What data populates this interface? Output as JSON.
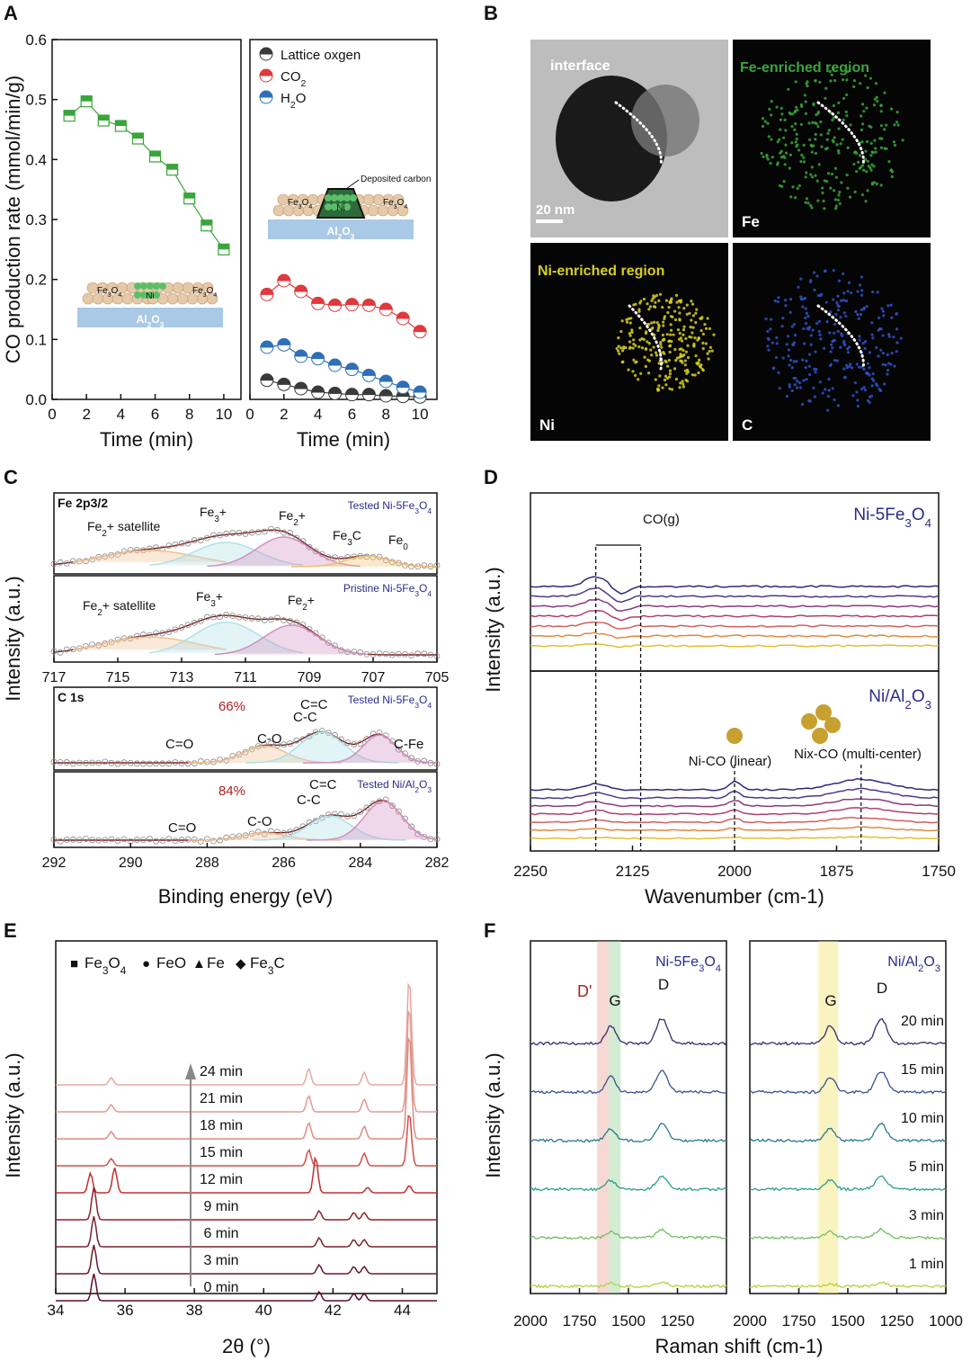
{
  "panels": {
    "A": "A",
    "B": "B",
    "C": "C",
    "D": "D",
    "E": "E",
    "F": "F"
  },
  "colors": {
    "green": "#3aa53a",
    "red": "#e0383c",
    "blue": "#2f6fb8",
    "black": "#3a3a3a",
    "navy": "#2b2b8a",
    "darkred": "#b02020",
    "al2o3": "#a9c9e6",
    "bead": "#e6c9a8"
  },
  "chart_data": [
    {
      "panel": "A-left",
      "type": "line",
      "ylabel": "CO production rate (mmol/min/g)",
      "xlabel": "Time (min)",
      "xlim": [
        0,
        11
      ],
      "ylim": [
        0,
        0.6
      ],
      "xticks": [
        0,
        2,
        4,
        6,
        8,
        10
      ],
      "yticks": [
        0.0,
        0.1,
        0.2,
        0.3,
        0.4,
        0.5,
        0.6
      ],
      "yticklabels": [
        "0.0",
        "0.1",
        "0.2",
        "0.3",
        "0.4",
        "0.5",
        "0.6"
      ],
      "series": [
        {
          "color": "#3aa53a",
          "x": [
            1,
            2,
            3,
            4,
            5,
            6,
            7,
            8,
            9,
            10
          ],
          "values": [
            0.473,
            0.497,
            0.465,
            0.456,
            0.435,
            0.405,
            0.383,
            0.335,
            0.29,
            0.25
          ]
        }
      ],
      "inset": {
        "left": "Fe3O4",
        "center": "Ni",
        "right": "Fe3O4",
        "support": "Al2O3"
      }
    },
    {
      "panel": "A-right",
      "type": "line",
      "xlabel": "Time (min)",
      "xlim": [
        0,
        11
      ],
      "ylim": [
        0,
        0.6
      ],
      "xticks": [
        0,
        2,
        4,
        6,
        8,
        10
      ],
      "legend": [
        "Lattice oxgen",
        "CO2",
        "H2O"
      ],
      "series": [
        {
          "name": "Lattice oxgen",
          "color": "#3a3a3a",
          "x": [
            1,
            2,
            3,
            4,
            5,
            6,
            7,
            8,
            9,
            10
          ],
          "values": [
            0.032,
            0.025,
            0.018,
            0.012,
            0.01,
            0.008,
            0.008,
            0.006,
            0.005,
            0.004
          ]
        },
        {
          "name": "CO2",
          "color": "#e0383c",
          "x": [
            1,
            2,
            3,
            4,
            5,
            6,
            7,
            8,
            9,
            10
          ],
          "values": [
            0.175,
            0.198,
            0.18,
            0.16,
            0.157,
            0.158,
            0.157,
            0.15,
            0.135,
            0.113
          ]
        },
        {
          "name": "H2O",
          "color": "#2f6fb8",
          "x": [
            1,
            2,
            3,
            4,
            5,
            6,
            7,
            8,
            9,
            10
          ],
          "values": [
            0.087,
            0.091,
            0.072,
            0.068,
            0.057,
            0.05,
            0.04,
            0.03,
            0.02,
            0.012
          ]
        }
      ],
      "inset": {
        "left": "Fe3O4",
        "center": "Ni",
        "right": "Fe3O4",
        "support": "Al2O3",
        "label": "Deposited carbon"
      }
    },
    {
      "panel": "B",
      "type": "image-grid",
      "tiles": [
        {
          "label": "",
          "annotation": "interface",
          "scalebar": "20 nm"
        },
        {
          "label": "Fe",
          "annotation": "Fe-enriched region"
        },
        {
          "label": "Ni",
          "annotation": "Ni-enriched region"
        },
        {
          "label": "C",
          "annotation": ""
        }
      ]
    },
    {
      "panel": "C",
      "type": "line",
      "ylabel": "Intensity (a.u.)",
      "xlabel": "Binding energy (eV)",
      "sub": [
        {
          "title": "Fe 2p3/2",
          "xlim": [
            717,
            705
          ],
          "xticks": [
            717,
            715,
            713,
            711,
            709,
            707,
            705
          ],
          "boxes": [
            {
              "sample": "Tested Ni-5Fe3O4",
              "labels": [
                "Fe2+ satellite",
                "Fe3+",
                "Fe2+",
                "Fe3C",
                "Fe0"
              ]
            },
            {
              "sample": "Pristine Ni-5Fe3O4",
              "labels": [
                "Fe2+ satellite",
                "Fe3+",
                "Fe2+"
              ]
            }
          ]
        },
        {
          "title": "C 1s",
          "xlim": [
            292,
            282
          ],
          "xticks": [
            292,
            290,
            288,
            286,
            284,
            282
          ],
          "boxes": [
            {
              "sample": "Tested Ni-5Fe3O4",
              "percent": "66%",
              "labels": [
                "C=O",
                "C-O",
                "C=C",
                "C-C",
                "C-Fe"
              ]
            },
            {
              "sample": "Tested Ni/Al2O3",
              "percent": "84%",
              "labels": [
                "C=O",
                "C-O",
                "C=C",
                "C-C"
              ]
            }
          ]
        }
      ]
    },
    {
      "panel": "D",
      "type": "line",
      "ylabel": "Intensity (a.u.)",
      "xlabel": "Wavenumber (cm-1)",
      "xlim": [
        2250,
        1750
      ],
      "xticks": [
        2250,
        2125,
        2000,
        1875,
        1750
      ],
      "sub": [
        {
          "sample": "Ni-5Fe3O4",
          "annotation": "CO(g)"
        },
        {
          "sample": "Ni/Al2O3",
          "annotations": [
            "Ni-CO (linear)",
            "Nix-CO (multi-center)"
          ]
        }
      ],
      "markers": [
        2170,
        2115,
        2000,
        1845
      ]
    },
    {
      "panel": "E",
      "type": "line",
      "ylabel": "Intensity (a.u.)",
      "xlabel": "2θ (°)",
      "xlim": [
        34,
        45
      ],
      "xticks": [
        34,
        36,
        38,
        40,
        42,
        44
      ],
      "legend": [
        "Fe3O4",
        "FeO",
        "Fe",
        "Fe3C"
      ],
      "times": [
        "24 min",
        "21 min",
        "18 min",
        "15 min",
        "12 min",
        "9 min",
        "6 min",
        "3 min",
        "0 min"
      ]
    },
    {
      "panel": "F",
      "type": "line",
      "ylabel": "Intensity (a.u.)",
      "xlabel": "Raman shift (cm-1)",
      "sub": [
        {
          "sample": "Ni-5Fe3O4",
          "xlim": [
            2000,
            1000
          ],
          "xticks": [
            2000,
            1750,
            1500,
            1250
          ],
          "bands": [
            "D'",
            "G",
            "D"
          ]
        },
        {
          "sample": "Ni/Al2O3",
          "xlim": [
            2000,
            1000
          ],
          "xticks": [
            2000,
            1750,
            1500,
            1250,
            1000
          ],
          "bands": [
            "G",
            "D"
          ],
          "times": [
            "20 min",
            "15 min",
            "10 min",
            "5 min",
            "3 min",
            "1 min"
          ]
        }
      ]
    }
  ]
}
